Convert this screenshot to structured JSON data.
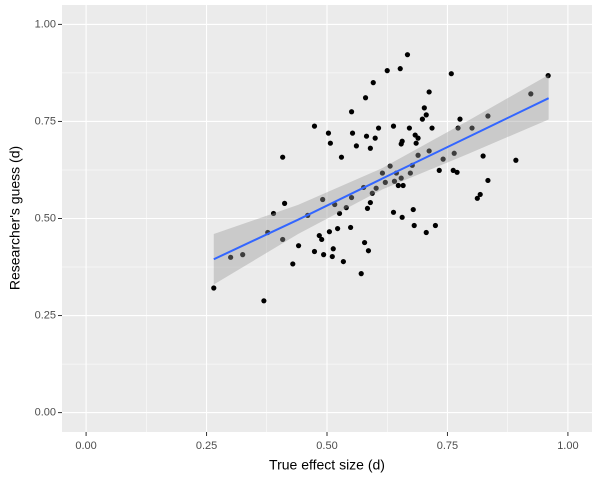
{
  "chart_data": {
    "type": "scatter",
    "xlabel": "True effect size (d)",
    "ylabel": "Researcher's guess (d)",
    "color": "#000000",
    "x": [
      0.265,
      0.369,
      0.3,
      0.325,
      0.377,
      0.389,
      0.408,
      0.412,
      0.408,
      0.429,
      0.441,
      0.46,
      0.474,
      0.474,
      0.484,
      0.489,
      0.491,
      0.493,
      0.503,
      0.505,
      0.507,
      0.511,
      0.513,
      0.516,
      0.522,
      0.526,
      0.53,
      0.534,
      0.54,
      0.549,
      0.551,
      0.551,
      0.553,
      0.561,
      0.571,
      0.578,
      0.576,
      0.58,
      0.582,
      0.584,
      0.586,
      0.59,
      0.59,
      0.594,
      0.596,
      0.6,
      0.602,
      0.607,
      0.615,
      0.621,
      0.625,
      0.631,
      0.638,
      0.638,
      0.64,
      0.644,
      0.648,
      0.652,
      0.654,
      0.654,
      0.656,
      0.656,
      0.658,
      0.667,
      0.671,
      0.673,
      0.677,
      0.679,
      0.681,
      0.683,
      0.685,
      0.689,
      0.689,
      0.698,
      0.702,
      0.706,
      0.706,
      0.712,
      0.712,
      0.718,
      0.725,
      0.733,
      0.741,
      0.758,
      0.762,
      0.764,
      0.77,
      0.772,
      0.776,
      0.801,
      0.812,
      0.818,
      0.824,
      0.834,
      0.834,
      0.892,
      0.923,
      0.959
    ],
    "values": [
      0.321,
      0.288,
      0.4,
      0.407,
      0.464,
      0.513,
      0.446,
      0.539,
      0.658,
      0.383,
      0.43,
      0.508,
      0.738,
      0.415,
      0.456,
      0.446,
      0.549,
      0.407,
      0.72,
      0.466,
      0.694,
      0.402,
      0.422,
      0.536,
      0.474,
      0.513,
      0.658,
      0.389,
      0.528,
      0.477,
      0.554,
      0.775,
      0.72,
      0.687,
      0.358,
      0.438,
      0.58,
      0.811,
      0.712,
      0.526,
      0.417,
      0.681,
      0.541,
      0.565,
      0.85,
      0.707,
      0.578,
      0.733,
      0.617,
      0.593,
      0.881,
      0.635,
      0.516,
      0.738,
      0.596,
      0.617,
      0.585,
      0.886,
      0.604,
      0.692,
      0.699,
      0.503,
      0.585,
      0.922,
      0.733,
      0.617,
      0.637,
      0.523,
      0.482,
      0.715,
      0.694,
      0.707,
      0.663,
      0.756,
      0.785,
      0.767,
      0.464,
      0.674,
      0.826,
      0.733,
      0.482,
      0.624,
      0.653,
      0.873,
      0.624,
      0.668,
      0.619,
      0.733,
      0.756,
      0.733,
      0.552,
      0.562,
      0.661,
      0.764,
      0.598,
      0.65,
      0.821,
      0.868
    ],
    "fit": {
      "color": "#3366FF",
      "band_color": "#999999",
      "band_opacity": 0.4,
      "x": [
        0.265,
        0.44,
        0.615,
        0.79,
        0.96
      ],
      "values": [
        0.395,
        0.497,
        0.603,
        0.708,
        0.81
      ],
      "lower": [
        0.33,
        0.46,
        0.575,
        0.665,
        0.755
      ],
      "upper": [
        0.46,
        0.535,
        0.63,
        0.75,
        0.87
      ]
    },
    "xlim": [
      -0.05,
      1.05
    ],
    "ylim": [
      -0.05,
      1.05
    ],
    "xticks": [
      {
        "value": 0,
        "label": "0.00"
      },
      {
        "value": 0.25,
        "label": "0.25"
      },
      {
        "value": 0.5,
        "label": "0.50"
      },
      {
        "value": 0.75,
        "label": "0.75"
      },
      {
        "value": 1,
        "label": "1.00"
      }
    ],
    "yticks": [
      {
        "value": 0,
        "label": "0.00"
      },
      {
        "value": 0.25,
        "label": "0.25"
      },
      {
        "value": 0.5,
        "label": "0.50"
      },
      {
        "value": 0.75,
        "label": "0.75"
      },
      {
        "value": 1,
        "label": "1.00"
      }
    ],
    "grid": true
  }
}
